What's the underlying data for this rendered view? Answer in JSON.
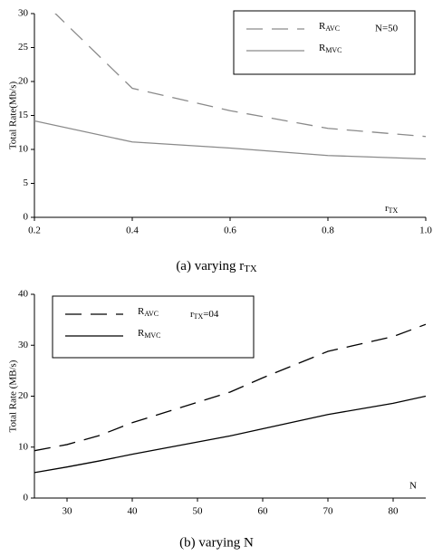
{
  "chart_data": [
    {
      "type": "line",
      "caption": "(a) varying r_TX",
      "ylabel": "Total Rate(Mb/s)",
      "xlabel": "r_TX",
      "annotation": "N=50",
      "x": [
        0.2,
        0.4,
        0.6,
        0.8,
        1.0
      ],
      "series": [
        {
          "name": "R_AVC",
          "color": "#8a8a8a",
          "style": "dashed",
          "values": [
            33,
            19,
            15.7,
            13.1,
            11.9
          ]
        },
        {
          "name": "R_MVC",
          "color": "#8a8a8a",
          "style": "solid",
          "values": [
            14.2,
            11.1,
            10.2,
            9.1,
            8.6
          ]
        }
      ],
      "xlim": [
        0.2,
        1.0
      ],
      "ylim": [
        0,
        30
      ],
      "xticks": [
        0.2,
        0.4,
        0.6,
        0.8,
        {
          "value": 1.0,
          "label": "1.0"
        }
      ],
      "yticks": [
        0,
        5,
        10,
        15,
        20,
        25,
        30
      ]
    },
    {
      "type": "line",
      "caption": "(b) varying N",
      "ylabel": "Total Rate (MB/s)",
      "xlabel": "N",
      "annotation": "r_TX=04",
      "x": [
        25,
        30,
        35,
        40,
        45,
        50,
        55,
        60,
        70,
        80,
        85
      ],
      "series": [
        {
          "name": "R_AVC",
          "color": "#000000",
          "style": "dashed",
          "values": [
            9.3,
            10.5,
            12.3,
            14.8,
            16.8,
            18.8,
            20.8,
            23.6,
            28.8,
            31.7,
            34.1
          ]
        },
        {
          "name": "R_MVC",
          "color": "#000000",
          "style": "solid",
          "values": [
            5,
            6.1,
            7.3,
            8.6,
            9.8,
            11,
            12.2,
            13.6,
            16.4,
            18.6,
            20
          ]
        }
      ],
      "xlim": [
        25,
        85
      ],
      "ylim": [
        0,
        40
      ],
      "xticks": [
        30,
        40,
        50,
        60,
        70,
        80
      ],
      "yticks": [
        0,
        10,
        20,
        30,
        40
      ]
    }
  ]
}
